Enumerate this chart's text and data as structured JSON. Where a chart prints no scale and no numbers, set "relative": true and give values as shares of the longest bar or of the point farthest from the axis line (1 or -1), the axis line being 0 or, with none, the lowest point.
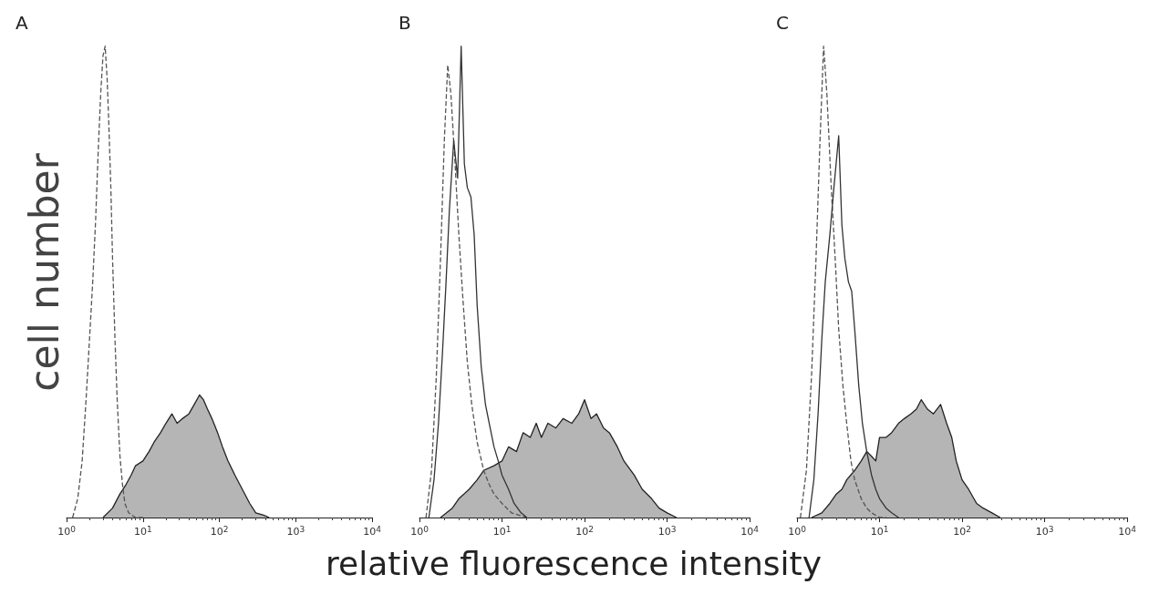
{
  "chart_data": [
    {
      "type": "line",
      "title": "A",
      "ylabel": "cell number",
      "relative": true,
      "log": "x",
      "xlim": [
        1,
        10000
      ],
      "xticks": [
        {
          "value": 1,
          "label": "10$^{0}$"
        },
        {
          "value": 10,
          "label": "10$^{1}$"
        },
        {
          "value": 100,
          "label": "10$^{2}$"
        },
        {
          "value": 1000,
          "label": "10$^{3}$"
        },
        {
          "value": 10000,
          "label": "10$^{4}$"
        }
      ],
      "grid": false,
      "marker": "none",
      "series": [
        {
          "type": "line",
          "line_style": "dashed",
          "color": "#555555",
          "x": [
            1.2,
            1.4,
            1.6,
            1.8,
            2.0,
            2.2,
            2.4,
            2.6,
            2.8,
            3.0,
            3.2,
            3.4,
            3.6,
            3.8,
            4.0,
            4.3,
            4.6,
            5.0,
            5.4,
            5.8,
            6.5,
            8,
            10
          ],
          "values": [
            0,
            0.04,
            0.12,
            0.25,
            0.38,
            0.5,
            0.63,
            0.78,
            0.9,
            0.98,
            1.0,
            0.93,
            0.82,
            0.7,
            0.55,
            0.38,
            0.25,
            0.13,
            0.07,
            0.03,
            0.01,
            0,
            0
          ]
        },
        {
          "type": "area",
          "color": "#b5b5b5",
          "x": [
            3,
            4,
            5,
            6,
            7,
            8,
            10,
            12,
            14,
            17,
            20,
            24,
            28,
            33,
            40,
            47,
            55,
            62,
            70,
            80,
            95,
            110,
            130,
            160,
            200,
            250,
            300,
            380,
            450
          ],
          "values": [
            0,
            0.02,
            0.05,
            0.07,
            0.09,
            0.11,
            0.12,
            0.14,
            0.16,
            0.18,
            0.2,
            0.22,
            0.2,
            0.21,
            0.22,
            0.24,
            0.26,
            0.25,
            0.23,
            0.21,
            0.18,
            0.15,
            0.12,
            0.09,
            0.06,
            0.03,
            0.01,
            0.005,
            0
          ]
        }
      ]
    },
    {
      "type": "line",
      "title": "B",
      "xlabel": "relative  fluorescence  intensity",
      "relative": true,
      "log": "x",
      "xlim": [
        1,
        10000
      ],
      "xticks": [
        {
          "value": 1,
          "label": "10$^{0}$"
        },
        {
          "value": 10,
          "label": "10$^{1}$"
        },
        {
          "value": 100,
          "label": "10$^{2}$"
        },
        {
          "value": 1000,
          "label": "10$^{3}$"
        },
        {
          "value": 10000,
          "label": "10$^{4}$"
        }
      ],
      "grid": false,
      "marker": "none",
      "series": [
        {
          "type": "line",
          "line_style": "dashed",
          "color": "#555555",
          "x": [
            1.2,
            1.4,
            1.6,
            1.8,
            2.0,
            2.2,
            2.4,
            2.7,
            3.0,
            3.4,
            3.8,
            4.3,
            5,
            6,
            7,
            8,
            10,
            13,
            16,
            20
          ],
          "values": [
            0,
            0.1,
            0.3,
            0.55,
            0.8,
            0.96,
            0.9,
            0.75,
            0.6,
            0.45,
            0.33,
            0.24,
            0.16,
            0.1,
            0.07,
            0.05,
            0.03,
            0.01,
            0.005,
            0
          ]
        },
        {
          "type": "line",
          "line_style": "solid",
          "color": "#333333",
          "x": [
            1.3,
            1.5,
            1.7,
            1.9,
            2.1,
            2.3,
            2.6,
            2.9,
            3.2,
            3.5,
            3.8,
            4.2,
            4.6,
            5.0,
            5.6,
            6.3,
            7,
            8,
            9,
            10,
            12,
            14,
            17,
            20
          ],
          "values": [
            0,
            0.08,
            0.2,
            0.35,
            0.5,
            0.65,
            0.8,
            0.72,
            1.0,
            0.75,
            0.7,
            0.68,
            0.6,
            0.45,
            0.32,
            0.24,
            0.2,
            0.15,
            0.12,
            0.09,
            0.06,
            0.03,
            0.01,
            0
          ]
        },
        {
          "type": "area",
          "color": "#b5b5b5",
          "x": [
            1.8,
            2.5,
            3,
            4,
            5,
            6,
            8,
            10,
            12,
            15,
            18,
            22,
            26,
            30,
            36,
            45,
            55,
            70,
            85,
            100,
            120,
            140,
            170,
            200,
            250,
            300,
            400,
            500,
            650,
            800,
            1000,
            1300
          ],
          "values": [
            0,
            0.02,
            0.04,
            0.06,
            0.08,
            0.1,
            0.11,
            0.12,
            0.15,
            0.14,
            0.18,
            0.17,
            0.2,
            0.17,
            0.2,
            0.19,
            0.21,
            0.2,
            0.22,
            0.25,
            0.21,
            0.22,
            0.19,
            0.18,
            0.15,
            0.12,
            0.09,
            0.06,
            0.04,
            0.02,
            0.01,
            0
          ]
        }
      ]
    },
    {
      "type": "line",
      "title": "C",
      "relative": true,
      "log": "x",
      "xlim": [
        1,
        10000
      ],
      "xticks": [
        {
          "value": 1,
          "label": "10$^{0}$"
        },
        {
          "value": 10,
          "label": "10$^{1}$"
        },
        {
          "value": 100,
          "label": "10$^{2}$"
        },
        {
          "value": 1000,
          "label": "10$^{3}$"
        },
        {
          "value": 10000,
          "label": "10$^{4}$"
        }
      ],
      "grid": false,
      "marker": "none",
      "series": [
        {
          "type": "line",
          "line_style": "dashed",
          "color": "#555555",
          "x": [
            1.1,
            1.3,
            1.5,
            1.7,
            1.9,
            2.1,
            2.3,
            2.6,
            2.9,
            3.2,
            3.6,
            4,
            4.5,
            5,
            6,
            7,
            8,
            10,
            12
          ],
          "values": [
            0,
            0.1,
            0.3,
            0.55,
            0.8,
            1.0,
            0.9,
            0.7,
            0.55,
            0.4,
            0.28,
            0.2,
            0.12,
            0.08,
            0.04,
            0.02,
            0.01,
            0,
            0
          ]
        },
        {
          "type": "line",
          "line_style": "solid",
          "color": "#333333",
          "x": [
            1.4,
            1.6,
            1.8,
            2.0,
            2.2,
            2.5,
            2.8,
            3.2,
            3.5,
            3.8,
            4.2,
            4.6,
            5.0,
            5.6,
            6.2,
            7,
            8,
            9,
            10,
            12,
            14,
            17
          ],
          "values": [
            0,
            0.08,
            0.22,
            0.38,
            0.5,
            0.6,
            0.7,
            0.81,
            0.62,
            0.55,
            0.5,
            0.48,
            0.4,
            0.28,
            0.2,
            0.14,
            0.09,
            0.06,
            0.04,
            0.02,
            0.01,
            0
          ]
        },
        {
          "type": "area",
          "color": "#b5b5b5",
          "x": [
            1.5,
            2,
            2.5,
            3,
            3.5,
            4,
            5,
            6,
            7,
            8,
            9,
            10,
            12,
            14,
            17,
            20,
            24,
            28,
            32,
            38,
            45,
            55,
            65,
            75,
            85,
            100,
            120,
            150,
            180,
            230,
            290
          ],
          "values": [
            0,
            0.01,
            0.03,
            0.05,
            0.06,
            0.08,
            0.1,
            0.12,
            0.14,
            0.13,
            0.12,
            0.17,
            0.17,
            0.18,
            0.2,
            0.21,
            0.22,
            0.23,
            0.25,
            0.23,
            0.22,
            0.24,
            0.2,
            0.17,
            0.12,
            0.08,
            0.06,
            0.03,
            0.02,
            0.01,
            0
          ]
        }
      ]
    }
  ]
}
